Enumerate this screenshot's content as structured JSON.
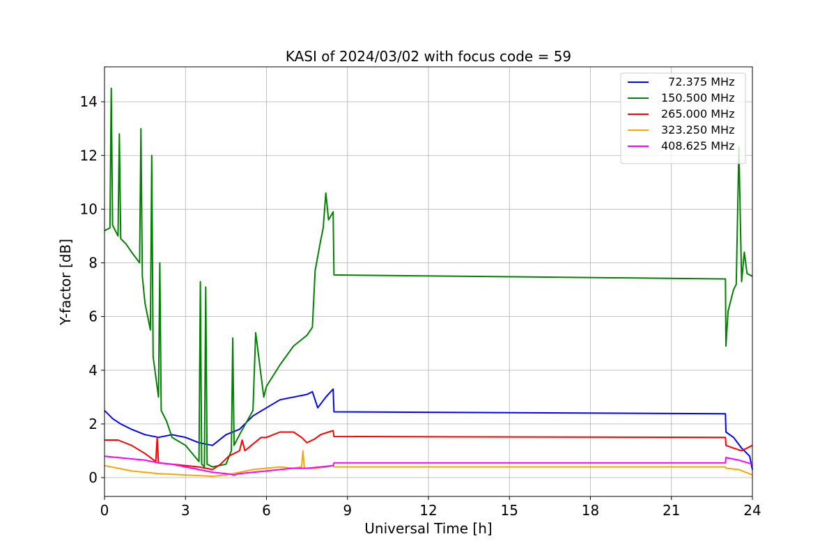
{
  "chart_data": {
    "type": "line",
    "title": "KASI of 2024/03/02 with focus code = 59",
    "xlabel": "Universal Time [h]",
    "ylabel": "Y-factor [dB]",
    "xlim": [
      0,
      24
    ],
    "ylim": [
      -0.7,
      15.3
    ],
    "xticks": [
      0,
      3,
      6,
      9,
      12,
      15,
      18,
      21,
      24
    ],
    "yticks": [
      0,
      2,
      4,
      6,
      8,
      10,
      12,
      14
    ],
    "grid": true,
    "legend_position": "top-right",
    "series": [
      {
        "name": "  72.375 MHz",
        "color": "#0000ff",
        "x": [
          0,
          0.3,
          0.6,
          1,
          1.5,
          2,
          2.5,
          3,
          3.5,
          4,
          4.5,
          5,
          5.5,
          6,
          6.5,
          7,
          7.5,
          7.7,
          7.9,
          8.2,
          8.47,
          8.5,
          23.0,
          23.02,
          23.3,
          23.6,
          23.9,
          24
        ],
        "y": [
          2.5,
          2.2,
          2.0,
          1.8,
          1.6,
          1.5,
          1.6,
          1.5,
          1.3,
          1.2,
          1.6,
          1.8,
          2.3,
          2.6,
          2.9,
          3.0,
          3.1,
          3.2,
          2.6,
          3.0,
          3.3,
          2.45,
          2.38,
          1.7,
          1.5,
          1.1,
          0.8,
          0.3
        ]
      },
      {
        "name": "150.500 MHz",
        "color": "#008000",
        "x": [
          0,
          0.2,
          0.25,
          0.3,
          0.5,
          0.55,
          0.6,
          0.8,
          1.0,
          1.3,
          1.35,
          1.4,
          1.5,
          1.7,
          1.75,
          1.8,
          2.0,
          2.05,
          2.1,
          2.3,
          2.5,
          3.0,
          3.5,
          3.55,
          3.6,
          3.7,
          3.75,
          3.8,
          4.0,
          4.5,
          4.7,
          4.75,
          4.8,
          5.0,
          5.5,
          5.6,
          5.9,
          6.0,
          6.5,
          7.0,
          7.5,
          7.7,
          7.8,
          8.0,
          8.1,
          8.2,
          8.3,
          8.47,
          8.5,
          23.0,
          23.02,
          23.1,
          23.3,
          23.4,
          23.5,
          23.6,
          23.7,
          23.8,
          24
        ],
        "y": [
          9.2,
          9.3,
          14.5,
          9.4,
          9.0,
          12.8,
          8.9,
          8.7,
          8.4,
          8.0,
          13.0,
          7.5,
          6.5,
          5.5,
          12.0,
          4.5,
          3.0,
          8.0,
          2.5,
          2.1,
          1.5,
          1.2,
          0.6,
          7.3,
          0.5,
          0.4,
          7.1,
          0.5,
          0.4,
          0.5,
          1.0,
          5.2,
          1.2,
          1.6,
          2.5,
          5.4,
          3.0,
          3.4,
          4.2,
          4.9,
          5.3,
          5.6,
          7.7,
          8.8,
          9.3,
          10.6,
          9.6,
          9.9,
          7.55,
          7.4,
          4.9,
          6.2,
          7.0,
          7.2,
          12.3,
          7.3,
          8.4,
          7.6,
          7.5
        ]
      },
      {
        "name": "265.000 MHz",
        "color": "#ff0000",
        "x": [
          0,
          0.5,
          1.0,
          1.5,
          1.9,
          1.95,
          2.0,
          2.5,
          3.0,
          3.5,
          4.0,
          4.3,
          4.6,
          5.0,
          5.1,
          5.2,
          5.5,
          5.8,
          6.0,
          6.5,
          7.0,
          7.3,
          7.5,
          7.8,
          8.0,
          8.3,
          8.47,
          8.5,
          23.0,
          23.02,
          23.3,
          23.6,
          24
        ],
        "y": [
          1.4,
          1.4,
          1.2,
          0.9,
          0.6,
          1.5,
          0.55,
          0.5,
          0.45,
          0.4,
          0.3,
          0.5,
          0.8,
          1.0,
          1.4,
          1.0,
          1.25,
          1.5,
          1.5,
          1.7,
          1.7,
          1.5,
          1.3,
          1.45,
          1.6,
          1.7,
          1.75,
          1.53,
          1.5,
          1.2,
          1.1,
          1.0,
          1.2
        ]
      },
      {
        "name": "323.250 MHz",
        "color": "#ffa500",
        "x": [
          0,
          0.5,
          1.0,
          2.0,
          3.0,
          4.0,
          4.5,
          5.0,
          5.5,
          6.0,
          6.5,
          7.0,
          7.3,
          7.35,
          7.4,
          7.8,
          8.2,
          8.47,
          8.5,
          23.0,
          23.02,
          23.5,
          24
        ],
        "y": [
          0.45,
          0.35,
          0.25,
          0.15,
          0.1,
          0.05,
          0.1,
          0.2,
          0.3,
          0.35,
          0.4,
          0.35,
          0.4,
          1.0,
          0.35,
          0.35,
          0.4,
          0.45,
          0.4,
          0.4,
          0.35,
          0.3,
          0.1
        ]
      },
      {
        "name": "408.625 MHz",
        "color": "#ff00ff",
        "x": [
          0,
          0.5,
          1.0,
          1.5,
          2.0,
          2.5,
          3.0,
          3.5,
          4.0,
          4.5,
          4.8,
          5.0,
          5.5,
          6.0,
          6.5,
          7.0,
          7.5,
          8.0,
          8.47,
          8.5,
          23.0,
          23.02,
          23.5,
          24
        ],
        "y": [
          0.8,
          0.75,
          0.7,
          0.65,
          0.55,
          0.5,
          0.4,
          0.3,
          0.2,
          0.15,
          0.1,
          0.15,
          0.2,
          0.25,
          0.3,
          0.35,
          0.35,
          0.4,
          0.45,
          0.55,
          0.55,
          0.75,
          0.65,
          0.5
        ]
      }
    ]
  }
}
